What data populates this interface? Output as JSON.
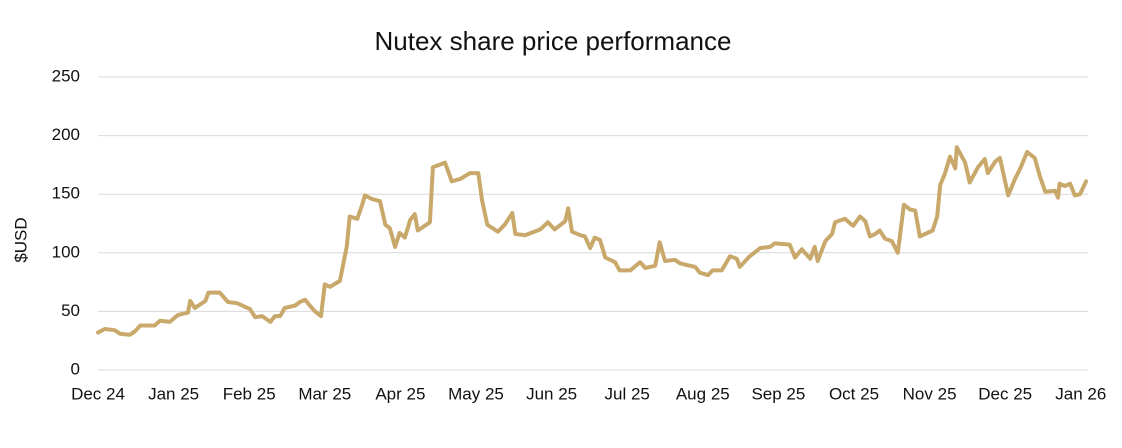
{
  "chart_data": {
    "type": "line",
    "title": "Nutex share price performance",
    "y_label": "$USD",
    "x": [
      0,
      0.09,
      0.22,
      0.29,
      0.42,
      0.49,
      0.56,
      0.75,
      0.82,
      0.95,
      1.06,
      1.19,
      1.22,
      1.28,
      1.42,
      1.46,
      1.61,
      1.72,
      1.84,
      1.94,
      2.01,
      2.08,
      2.17,
      2.28,
      2.34,
      2.41,
      2.47,
      2.61,
      2.67,
      2.74,
      2.79,
      2.87,
      2.95,
      3.0,
      3.07,
      3.2,
      3.29,
      3.33,
      3.43,
      3.49,
      3.53,
      3.62,
      3.73,
      3.8,
      3.86,
      3.93,
      3.99,
      4.06,
      4.13,
      4.19,
      4.23,
      4.39,
      4.43,
      4.59,
      4.68,
      4.79,
      4.92,
      5.03,
      5.08,
      5.15,
      5.29,
      5.38,
      5.48,
      5.52,
      5.65,
      5.85,
      5.95,
      6.04,
      6.18,
      6.22,
      6.27,
      6.38,
      6.44,
      6.51,
      6.57,
      6.64,
      6.71,
      6.84,
      6.9,
      7.04,
      7.17,
      7.24,
      7.37,
      7.43,
      7.5,
      7.63,
      7.7,
      7.76,
      7.9,
      7.96,
      8.07,
      8.13,
      8.25,
      8.36,
      8.45,
      8.49,
      8.62,
      8.76,
      8.89,
      8.95,
      9.15,
      9.22,
      9.31,
      9.42,
      9.48,
      9.52,
      9.62,
      9.71,
      9.75,
      9.88,
      9.99,
      10.08,
      10.15,
      10.21,
      10.28,
      10.34,
      10.41,
      10.5,
      10.58,
      10.66,
      10.74,
      10.81,
      10.87,
      11.04,
      11.1,
      11.14,
      11.2,
      11.27,
      11.34,
      11.36,
      11.47,
      11.53,
      11.64,
      11.73,
      11.77,
      11.87,
      11.93,
      12.04,
      12.13,
      12.2,
      12.29,
      12.39,
      12.46,
      12.53,
      12.66,
      12.7,
      12.72,
      12.79,
      12.86,
      12.92,
      12.99,
      13.07
    ],
    "series": [
      {
        "name": "Nutex",
        "color": "#c9a96b",
        "values": [
          32,
          35,
          34,
          31,
          30,
          33,
          38,
          38,
          42,
          41,
          47,
          49,
          59,
          53,
          59,
          66,
          66,
          58,
          57,
          54,
          52,
          45,
          46,
          41,
          46,
          46,
          53,
          55,
          58,
          60,
          56,
          50,
          46,
          73,
          71,
          76,
          105,
          131,
          129,
          140,
          149,
          146,
          144,
          124,
          121,
          105,
          117,
          113,
          128,
          133,
          119,
          126,
          173,
          177,
          161,
          163,
          168,
          168,
          145,
          124,
          118,
          124,
          134,
          116,
          115,
          120,
          126,
          120,
          127,
          138,
          118,
          115,
          114,
          104,
          113,
          111,
          96,
          92,
          85,
          85,
          92,
          87,
          89,
          109,
          93,
          94,
          91,
          90,
          88,
          83,
          81,
          85,
          85,
          97,
          95,
          88,
          97,
          104,
          105,
          108,
          107,
          96,
          103,
          95,
          105,
          93,
          110,
          116,
          126,
          129,
          123,
          131,
          127,
          114,
          116,
          119,
          112,
          110,
          100,
          141,
          137,
          136,
          114,
          119,
          131,
          158,
          167,
          182,
          172,
          190,
          177,
          160,
          173,
          180,
          168,
          178,
          181,
          149,
          163,
          172,
          186,
          181,
          165,
          152,
          153,
          147,
          159,
          157,
          159,
          149,
          150,
          161
        ]
      }
    ],
    "xlim": [
      0,
      13.1
    ],
    "xticks": [
      {
        "value": 0,
        "label": "Dec 24"
      },
      {
        "value": 1,
        "label": "Jan 25"
      },
      {
        "value": 2,
        "label": "Feb 25"
      },
      {
        "value": 3,
        "label": "Mar 25"
      },
      {
        "value": 4,
        "label": "Apr 25"
      },
      {
        "value": 5,
        "label": "May 25"
      },
      {
        "value": 6,
        "label": "Jun 25"
      },
      {
        "value": 7,
        "label": "Jul 25"
      },
      {
        "value": 8,
        "label": "Aug 25"
      },
      {
        "value": 9,
        "label": "Sep 25"
      },
      {
        "value": 10,
        "label": "Oct 25"
      },
      {
        "value": 11,
        "label": "Nov 25"
      },
      {
        "value": 12,
        "label": "Dec 25"
      },
      {
        "value": 13,
        "label": "Jan 26"
      }
    ],
    "ylim": [
      0,
      250
    ],
    "yticks": [
      0,
      50,
      100,
      150,
      200,
      250
    ],
    "grid": true
  }
}
